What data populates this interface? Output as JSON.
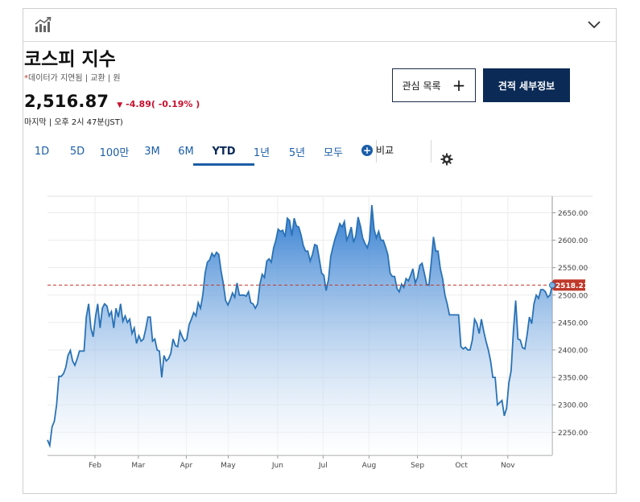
{
  "header": {
    "chart_icon": "bar-chart-icon",
    "collapse_icon": "chevron-down-icon"
  },
  "quote": {
    "title": "코스피 지수",
    "sub_star": "*",
    "subtitle": "데이터가 지연됨 | 교환 | 원",
    "price": "2,516.87",
    "change": "-4.89( -0.19% )",
    "timestamp": "마지막 | 오후 2시 47분(JST)"
  },
  "buttons": {
    "watchlist": "관심 목록",
    "watchlist_plus": "+",
    "details": "견적 세부정보"
  },
  "tabs": [
    {
      "label": "1D",
      "active": false
    },
    {
      "label": "5D",
      "active": false
    },
    {
      "label": "100만",
      "active": false
    },
    {
      "label": "3M",
      "active": false
    },
    {
      "label": "6M",
      "active": false
    },
    {
      "label": "YTD",
      "active": true
    },
    {
      "label": "1년",
      "active": false
    },
    {
      "label": "5년",
      "active": false
    },
    {
      "label": "모두",
      "active": false
    }
  ],
  "compare": {
    "label": "비교",
    "icon": "plus-circle-icon"
  },
  "settings_icon": "gear-icon",
  "colors": {
    "line": "#2a72b5",
    "fill_top": "#3b82cf",
    "fill_bottom": "#ffffff",
    "ref": "#c0392b",
    "accent": "#0b2a56"
  },
  "chart_data": {
    "type": "area",
    "title": "",
    "xlabel": "",
    "ylabel": "",
    "x_ticks": [
      "Feb",
      "Mar",
      "Apr",
      "May",
      "Jun",
      "Jul",
      "Aug",
      "Sep",
      "Oct",
      "Nov"
    ],
    "y_ticks": [
      "2250.00",
      "2300.00",
      "2350.00",
      "2400.00",
      "2450.00",
      "2500.00",
      "2550.00",
      "2600.00",
      "2650.00"
    ],
    "ylim": [
      2208,
      2680
    ],
    "y_axis_position": "right",
    "grid": true,
    "last_value_label": "2518.21",
    "reference_value": 2518.21,
    "series": [
      {
        "values": [
          2236,
          2226,
          2260,
          2270,
          2300,
          2352,
          2352,
          2357,
          2368,
          2390,
          2399,
          2380,
          2372,
          2384,
          2398,
          2398,
          2398,
          2460,
          2484,
          2440,
          2424,
          2460,
          2484,
          2440,
          2476,
          2484,
          2480,
          2462,
          2470,
          2440,
          2476,
          2460,
          2484,
          2452,
          2462,
          2450,
          2456,
          2430,
          2440,
          2412,
          2426,
          2416,
          2420,
          2438,
          2460,
          2460,
          2416,
          2420,
          2400,
          2398,
          2350,
          2390,
          2380,
          2384,
          2394,
          2420,
          2408,
          2406,
          2434,
          2424,
          2416,
          2420,
          2446,
          2456,
          2468,
          2462,
          2486,
          2476,
          2500,
          2540,
          2560,
          2564,
          2576,
          2570,
          2578,
          2574,
          2544,
          2520,
          2490,
          2482,
          2492,
          2504,
          2496,
          2522,
          2500,
          2500,
          2500,
          2498,
          2506,
          2486,
          2484,
          2476,
          2484,
          2520,
          2538,
          2532,
          2562,
          2566,
          2560,
          2586,
          2600,
          2620,
          2616,
          2618,
          2606,
          2640,
          2636,
          2608,
          2640,
          2626,
          2624,
          2610,
          2590,
          2580,
          2580,
          2562,
          2574,
          2592,
          2590,
          2566,
          2540,
          2536,
          2508,
          2528,
          2570,
          2588,
          2604,
          2616,
          2630,
          2624,
          2634,
          2600,
          2610,
          2624,
          2596,
          2608,
          2642,
          2626,
          2604,
          2594,
          2586,
          2600,
          2664,
          2620,
          2604,
          2616,
          2600,
          2600,
          2588,
          2574,
          2540,
          2534,
          2534,
          2512,
          2506,
          2520,
          2514,
          2530,
          2526,
          2536,
          2548,
          2522,
          2532,
          2554,
          2558,
          2540,
          2520,
          2518,
          2558,
          2606,
          2580,
          2580,
          2548,
          2530,
          2500,
          2484,
          2464,
          2464,
          2464,
          2464,
          2464,
          2406,
          2402,
          2405,
          2400,
          2400,
          2418,
          2456,
          2448,
          2430,
          2456,
          2434,
          2416,
          2400,
          2380,
          2350,
          2350,
          2300,
          2304,
          2308,
          2280,
          2294,
          2340,
          2362,
          2436,
          2490,
          2420,
          2418,
          2404,
          2402,
          2428,
          2460,
          2448,
          2484,
          2500,
          2494,
          2510,
          2510,
          2506,
          2496,
          2500,
          2518
        ]
      }
    ]
  }
}
